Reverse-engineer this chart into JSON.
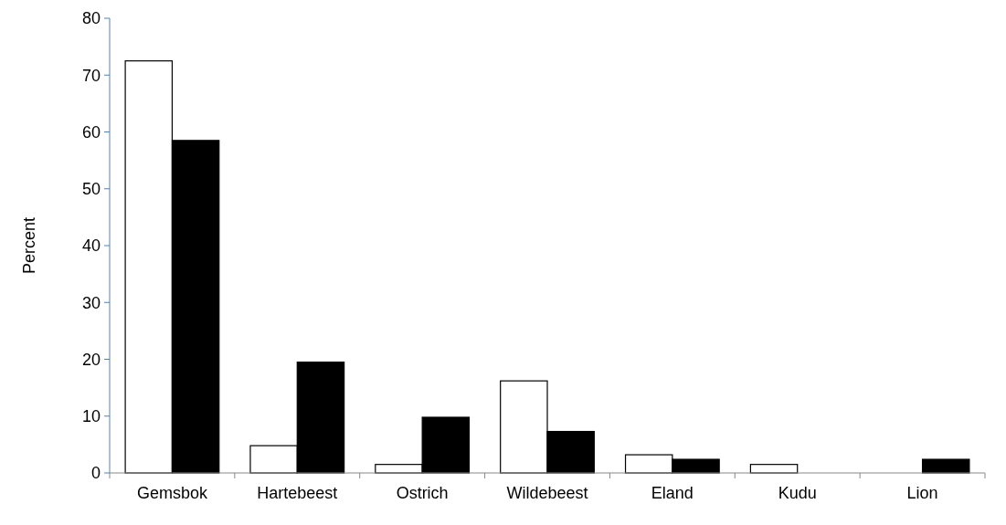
{
  "chart_data": {
    "type": "bar",
    "ylabel": "Percent",
    "categories": [
      "Gemsbok",
      "Hartebeest",
      "Ostrich",
      "Wildebeest",
      "Eland",
      "Kudu",
      "Lion"
    ],
    "series": [
      {
        "color": "#ffffff",
        "values": [
          72.5,
          4.8,
          1.5,
          16.2,
          3.2,
          1.5,
          0
        ]
      },
      {
        "color": "#000000",
        "values": [
          58.5,
          19.5,
          9.8,
          7.3,
          2.4,
          0,
          2.4
        ]
      }
    ],
    "ylim": [
      0,
      80
    ],
    "yticks": [
      0,
      10,
      20,
      30,
      40,
      50,
      60,
      70,
      80
    ]
  }
}
